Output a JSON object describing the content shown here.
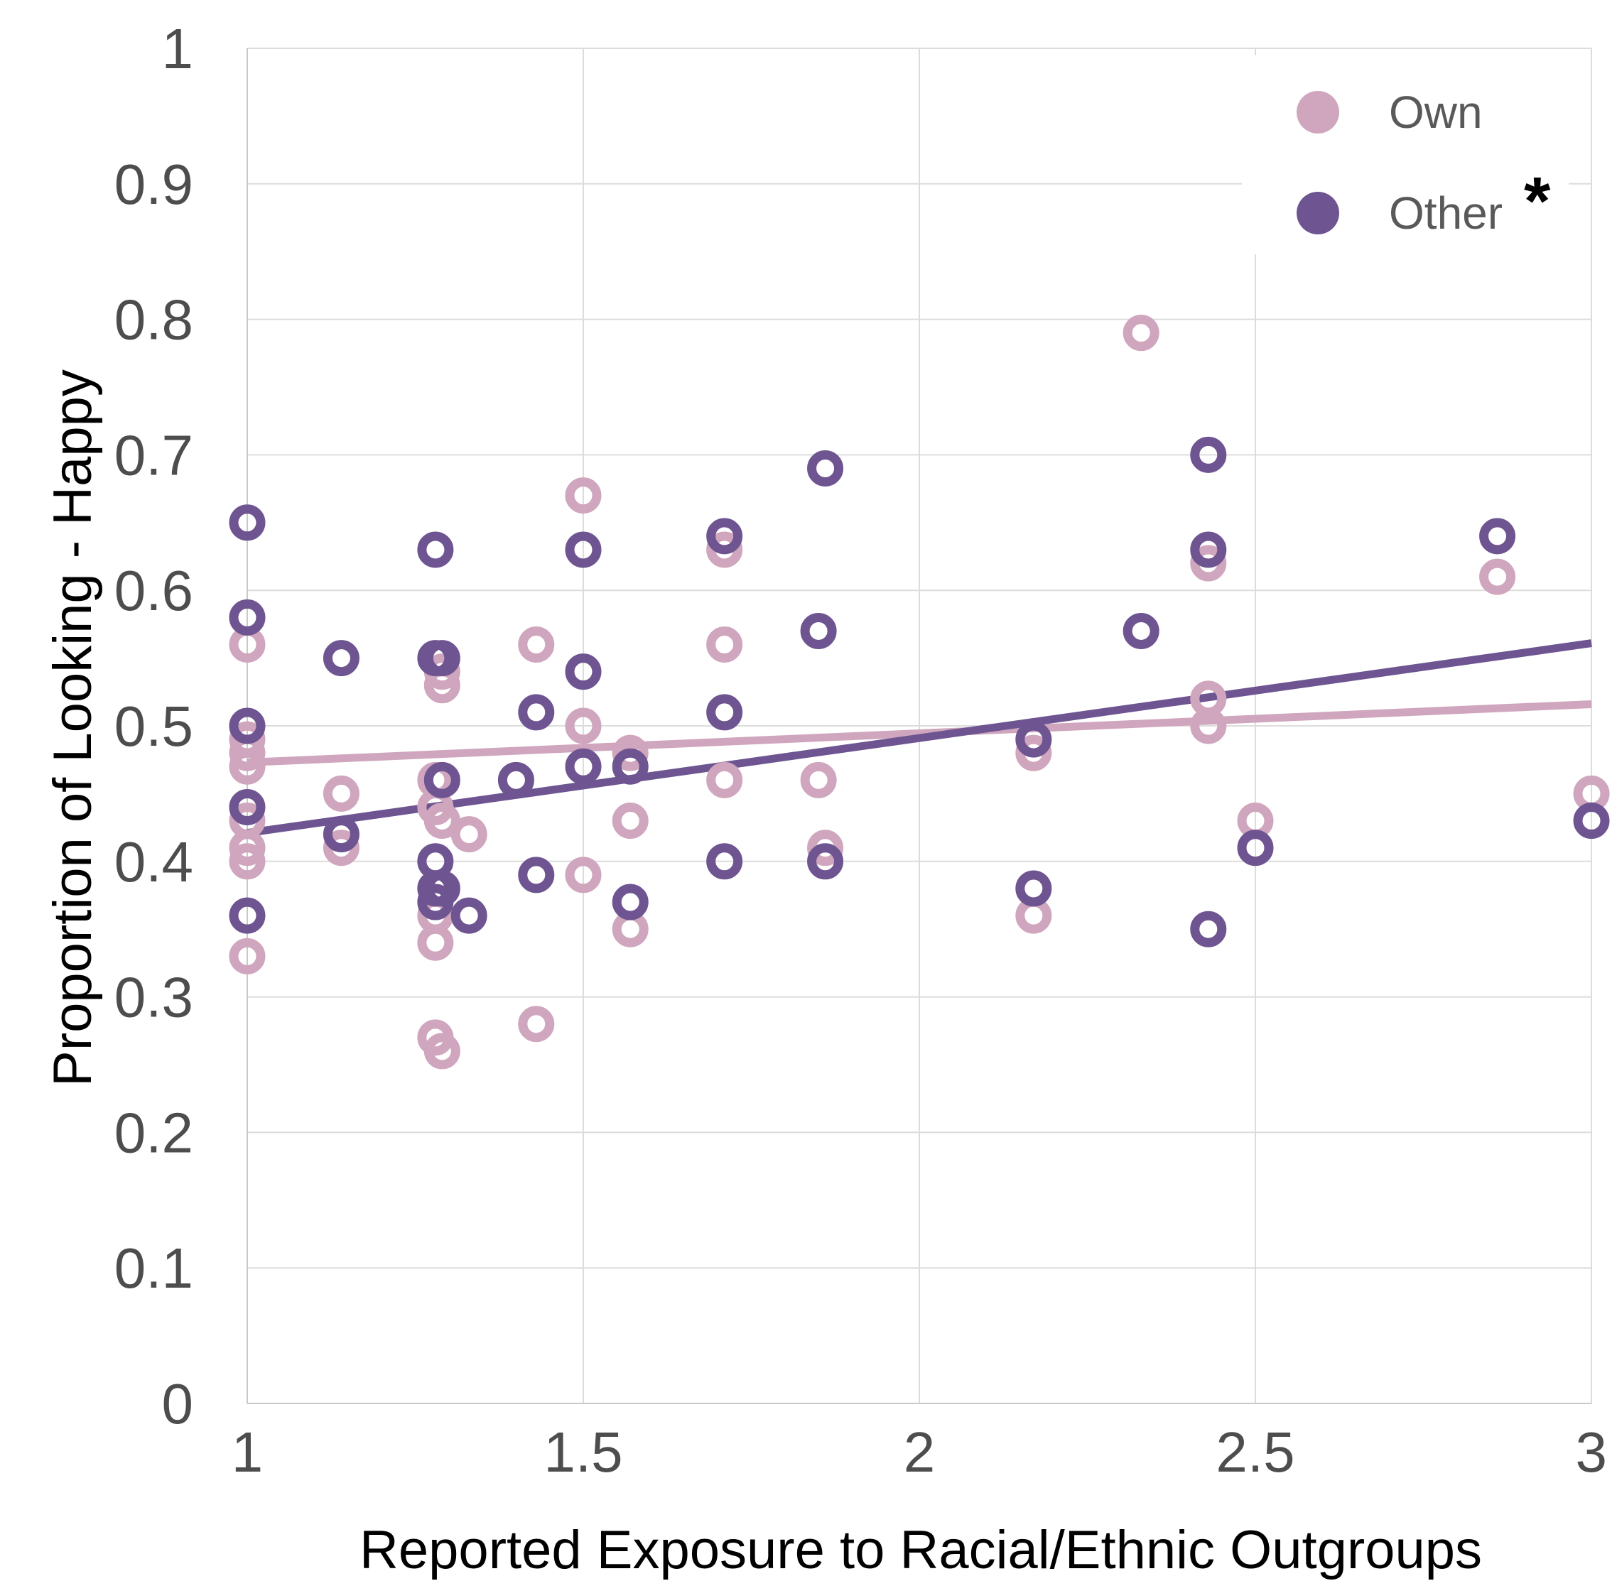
{
  "chart_data": {
    "type": "scatter",
    "title": "",
    "xlabel": "Reported Exposure to Racial/Ethnic Outgroups",
    "ylabel": "Proportion of Looking - Happy",
    "xlim": [
      1,
      3
    ],
    "ylim": [
      0,
      1
    ],
    "x_ticks": [
      1,
      1.5,
      2,
      2.5,
      3
    ],
    "x_tick_labels": [
      "1",
      "1.5",
      "2",
      "2.5",
      "3"
    ],
    "y_ticks": [
      0,
      0.1,
      0.2,
      0.3,
      0.4,
      0.5,
      0.6,
      0.7,
      0.8,
      0.9,
      1
    ],
    "y_tick_labels": [
      "0",
      "0.1",
      "0.2",
      "0.3",
      "0.4",
      "0.5",
      "0.6",
      "0.7",
      "0.8",
      "0.9",
      "1"
    ],
    "grid": true,
    "legend_position": "top-right",
    "series": [
      {
        "name": "Own",
        "significance_marker": "",
        "color": "#cfa6bd",
        "points": [
          [
            1,
            0.56
          ],
          [
            1,
            0.49
          ],
          [
            1,
            0.48
          ],
          [
            1,
            0.47
          ],
          [
            1,
            0.43
          ],
          [
            1,
            0.41
          ],
          [
            1,
            0.4
          ],
          [
            1,
            0.33
          ],
          [
            1.14,
            0.45
          ],
          [
            1.14,
            0.41
          ],
          [
            1.28,
            0.46
          ],
          [
            1.28,
            0.44
          ],
          [
            1.29,
            0.43
          ],
          [
            1.28,
            0.36
          ],
          [
            1.28,
            0.34
          ],
          [
            1.28,
            0.27
          ],
          [
            1.29,
            0.26
          ],
          [
            1.29,
            0.54
          ],
          [
            1.29,
            0.53
          ],
          [
            1.33,
            0.42
          ],
          [
            1.43,
            0.56
          ],
          [
            1.43,
            0.28
          ],
          [
            1.5,
            0.67
          ],
          [
            1.5,
            0.5
          ],
          [
            1.5,
            0.39
          ],
          [
            1.57,
            0.48
          ],
          [
            1.57,
            0.43
          ],
          [
            1.57,
            0.35
          ],
          [
            1.71,
            0.63
          ],
          [
            1.71,
            0.56
          ],
          [
            1.71,
            0.46
          ],
          [
            1.85,
            0.46
          ],
          [
            1.86,
            0.41
          ],
          [
            2.17,
            0.48
          ],
          [
            2.17,
            0.36
          ],
          [
            2.33,
            0.79
          ],
          [
            2.43,
            0.62
          ],
          [
            2.43,
            0.52
          ],
          [
            2.43,
            0.5
          ],
          [
            2.5,
            0.43
          ],
          [
            2.86,
            0.61
          ],
          [
            3,
            0.45
          ]
        ],
        "trend_line": {
          "x": [
            1,
            3
          ],
          "y": [
            0.473,
            0.516
          ]
        }
      },
      {
        "name": "Other",
        "significance_marker": "*",
        "color": "#6e5591",
        "points": [
          [
            1,
            0.65
          ],
          [
            1,
            0.58
          ],
          [
            1,
            0.5
          ],
          [
            1,
            0.44
          ],
          [
            1,
            0.36
          ],
          [
            1.14,
            0.55
          ],
          [
            1.14,
            0.42
          ],
          [
            1.28,
            0.63
          ],
          [
            1.28,
            0.55
          ],
          [
            1.29,
            0.55
          ],
          [
            1.29,
            0.46
          ],
          [
            1.28,
            0.4
          ],
          [
            1.28,
            0.38
          ],
          [
            1.29,
            0.38
          ],
          [
            1.28,
            0.37
          ],
          [
            1.33,
            0.36
          ],
          [
            1.4,
            0.46
          ],
          [
            1.43,
            0.51
          ],
          [
            1.43,
            0.39
          ],
          [
            1.5,
            0.63
          ],
          [
            1.5,
            0.54
          ],
          [
            1.5,
            0.47
          ],
          [
            1.57,
            0.47
          ],
          [
            1.57,
            0.37
          ],
          [
            1.71,
            0.64
          ],
          [
            1.71,
            0.51
          ],
          [
            1.71,
            0.4
          ],
          [
            1.86,
            0.69
          ],
          [
            1.85,
            0.57
          ],
          [
            1.86,
            0.4
          ],
          [
            2.17,
            0.49
          ],
          [
            2.17,
            0.38
          ],
          [
            2.33,
            0.57
          ],
          [
            2.43,
            0.7
          ],
          [
            2.43,
            0.63
          ],
          [
            2.43,
            0.35
          ],
          [
            2.5,
            0.41
          ],
          [
            2.86,
            0.64
          ],
          [
            3,
            0.43
          ]
        ],
        "trend_line": {
          "x": [
            1,
            3
          ],
          "y": [
            0.421,
            0.561
          ]
        }
      }
    ]
  }
}
